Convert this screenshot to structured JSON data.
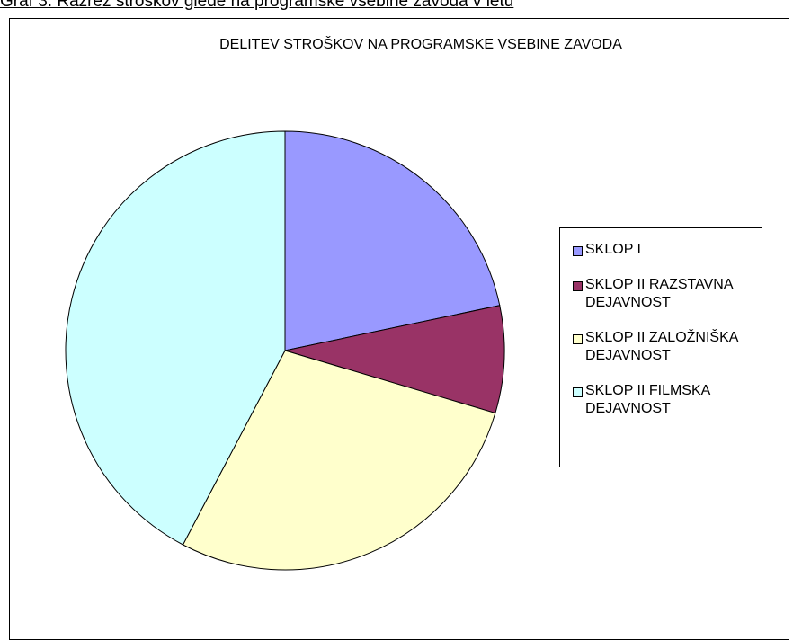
{
  "caption": "Graf 3: Razrez stroškov glede na programske vsebine zavoda v letu",
  "chart_data": {
    "type": "pie",
    "title": "DELITEV STROŠKOV NA PROGRAMSKE VSEBINE ZAVODA",
    "categories": [
      "SKLOP I",
      "SKLOP II RAZSTAVNA DEJAVNOST",
      "SKLOP II ZALOŽNIŠKA DEJAVNOST",
      "SKLOP II FILMSKA DEJAVNOST"
    ],
    "values": [
      21.7,
      7.9,
      28.1,
      42.3
    ],
    "colors": [
      "#9999ff",
      "#993366",
      "#ffffcc",
      "#ccffff"
    ],
    "legend": "right"
  }
}
